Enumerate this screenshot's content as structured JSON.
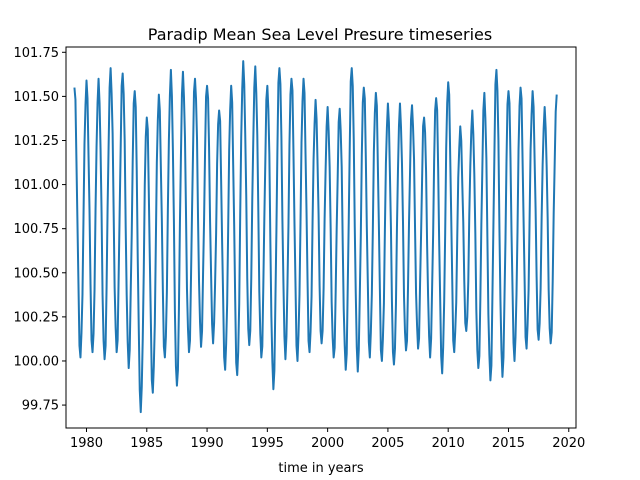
{
  "chart_data": {
    "type": "line",
    "title": "Paradip Mean Sea Level Presure timeseries",
    "xlabel": "time in years",
    "ylabel": "",
    "xlim": [
      1978.3,
      2020.6
    ],
    "ylim": [
      99.62,
      101.78
    ],
    "xticks": [
      1980,
      1985,
      1990,
      1995,
      2000,
      2005,
      2010,
      2015,
      2020
    ],
    "yticks": [
      99.75,
      100.0,
      100.25,
      100.5,
      100.75,
      101.0,
      101.25,
      101.5,
      101.75
    ],
    "ytick_labels": [
      "99.75",
      "100.00",
      "100.25",
      "100.50",
      "100.75",
      "101.00",
      "101.25",
      "101.50",
      "101.75"
    ],
    "grid": false,
    "series": [
      {
        "color": "#1f77b4",
        "annual_max": [
          101.55,
          101.59,
          101.6,
          101.66,
          101.63,
          101.53,
          101.38,
          101.51,
          101.65,
          101.64,
          101.6,
          101.56,
          101.42,
          101.56,
          101.7,
          101.67,
          101.56,
          101.66,
          101.6,
          101.6,
          101.48,
          101.44,
          101.43,
          101.66,
          101.55,
          101.52,
          101.46,
          101.46,
          101.45,
          101.38,
          101.49,
          101.58,
          101.33,
          101.42,
          101.52,
          101.65,
          101.53,
          101.55,
          101.53,
          101.44,
          101.51
        ],
        "annual_min": [
          100.02,
          100.05,
          100.01,
          100.05,
          99.96,
          99.71,
          99.82,
          100.02,
          99.86,
          100.05,
          100.08,
          100.1,
          99.95,
          99.92,
          100.09,
          100.02,
          99.84,
          100.01,
          100.0,
          100.05,
          100.1,
          100.02,
          99.95,
          99.94,
          100.02,
          100.0,
          99.98,
          100.06,
          100.07,
          100.02,
          99.93,
          100.05,
          100.17,
          99.96,
          99.89,
          99.91,
          100.0,
          100.07,
          100.12,
          100.1,
          99.9
        ]
      }
    ]
  }
}
